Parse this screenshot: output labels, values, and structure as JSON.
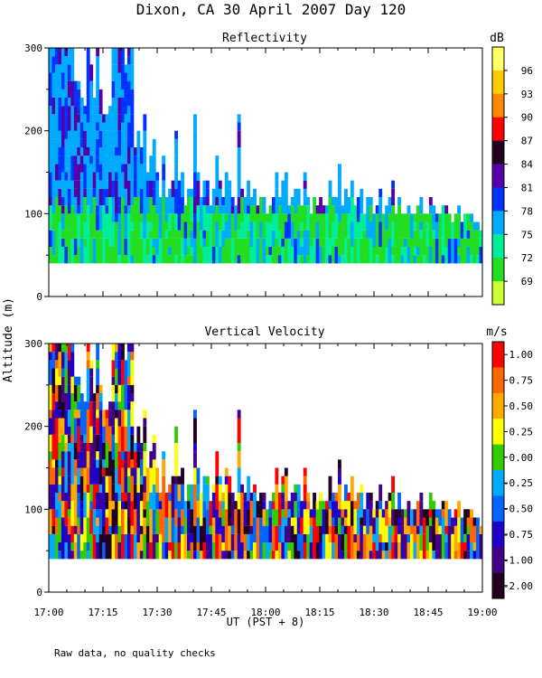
{
  "figure": {
    "title": "Dixon, CA 30 April 2007  Day 120",
    "shared_ylabel": "Altitude (m)",
    "xlabel": "UT  (PST + 8)",
    "footnote": "Raw data, no quality checks"
  },
  "chart_data": [
    {
      "type": "heatmap",
      "title": "Reflectivity",
      "x_ticks": [
        "17:00",
        "17:15",
        "17:30",
        "17:45",
        "18:00",
        "18:15",
        "18:30",
        "18:45",
        "19:00"
      ],
      "y_ticks": [
        0,
        100,
        200,
        300
      ],
      "ylim": [
        0,
        300
      ],
      "xlim": [
        "17:00",
        "19:00"
      ],
      "colorbar": {
        "unit": "dB",
        "labels": [
          "96",
          "93",
          "90",
          "87",
          "84",
          "81",
          "78",
          "75",
          "72",
          "69"
        ],
        "colors": [
          "#ffff66",
          "#ffcc00",
          "#ff8800",
          "#ff0000",
          "#220022",
          "#5500aa",
          "#0033ff",
          "#00aaff",
          "#00ee99",
          "#22dd22",
          "#ccff33"
        ]
      },
      "data_floor_m": 40,
      "profile_top_m": [
        300,
        300,
        300,
        300,
        300,
        300,
        300,
        300,
        260,
        260,
        240,
        230,
        300,
        280,
        240,
        300,
        250,
        220,
        220,
        230,
        300,
        300,
        300,
        300,
        280,
        300,
        300,
        180,
        200,
        180,
        220,
        150,
        170,
        190,
        150,
        120,
        170,
        120,
        130,
        140,
        200,
        140,
        150,
        110,
        130,
        130,
        220,
        150,
        120,
        140,
        140,
        110,
        130,
        170,
        140,
        120,
        150,
        140,
        120,
        110,
        220,
        130,
        120,
        140,
        120,
        130,
        110,
        120,
        120,
        100,
        110,
        120,
        150,
        120,
        140,
        150,
        110,
        120,
        130,
        130,
        110,
        150,
        120,
        100,
        120,
        110,
        120,
        110,
        110,
        140,
        120,
        120,
        160,
        110,
        130,
        120,
        140,
        110,
        120,
        130,
        100,
        120,
        120,
        100,
        110,
        130,
        100,
        110,
        120,
        140,
        100,
        120,
        100,
        100,
        110,
        100,
        100,
        110,
        120,
        100,
        100,
        120,
        110,
        100,
        100,
        110,
        110,
        100,
        90,
        100,
        110,
        90,
        100,
        100,
        100,
        90,
        90,
        80
      ]
    },
    {
      "type": "heatmap",
      "title": "Vertical Velocity",
      "x_ticks": [
        "17:00",
        "17:15",
        "17:30",
        "17:45",
        "18:00",
        "18:15",
        "18:30",
        "18:45",
        "19:00"
      ],
      "y_ticks": [
        0,
        100,
        200,
        300
      ],
      "ylim": [
        0,
        300
      ],
      "xlim": [
        "17:00",
        "19:00"
      ],
      "colorbar": {
        "unit": "m/s",
        "labels": [
          "1.00",
          "0.75",
          "0.50",
          "0.25",
          "0.00",
          "-0.25",
          "-0.50",
          "-0.75",
          "-1.00",
          "-2.00"
        ],
        "colors": [
          "#ff0000",
          "#ff6600",
          "#ffaa00",
          "#ffff00",
          "#33cc00",
          "#00aaff",
          "#0066ff",
          "#2200cc",
          "#440088",
          "#220022"
        ]
      },
      "data_floor_m": 40,
      "profile_top_m": [
        300,
        300,
        300,
        300,
        300,
        300,
        300,
        300,
        260,
        260,
        240,
        230,
        300,
        280,
        240,
        300,
        250,
        220,
        220,
        230,
        300,
        300,
        300,
        300,
        280,
        300,
        300,
        180,
        200,
        180,
        220,
        150,
        170,
        190,
        150,
        120,
        170,
        120,
        130,
        140,
        200,
        140,
        150,
        110,
        130,
        130,
        220,
        150,
        120,
        140,
        140,
        110,
        130,
        170,
        140,
        120,
        150,
        140,
        120,
        110,
        220,
        130,
        120,
        140,
        120,
        130,
        110,
        120,
        120,
        100,
        110,
        120,
        150,
        120,
        140,
        150,
        110,
        120,
        130,
        130,
        110,
        150,
        120,
        100,
        120,
        110,
        120,
        110,
        110,
        140,
        120,
        120,
        160,
        110,
        130,
        120,
        140,
        110,
        120,
        130,
        100,
        120,
        120,
        100,
        110,
        130,
        100,
        110,
        120,
        140,
        100,
        120,
        100,
        100,
        110,
        100,
        100,
        110,
        120,
        100,
        100,
        120,
        110,
        100,
        100,
        110,
        110,
        100,
        90,
        100,
        110,
        90,
        100,
        100,
        100,
        90,
        90,
        80
      ]
    }
  ]
}
